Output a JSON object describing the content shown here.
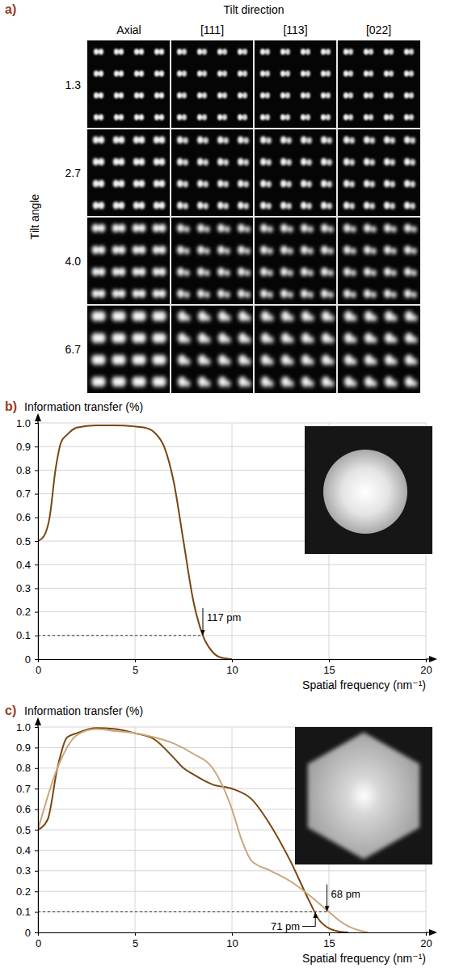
{
  "image_grid": {
    "label": "a)",
    "title": "Tilt direction",
    "row_title": "Tilt angle",
    "columns": [
      "Axial",
      "[111]",
      "[113]",
      "[022]"
    ],
    "rows": [
      "1.3",
      "2.7",
      "4.0",
      "6.7"
    ]
  },
  "chart_data": [
    {
      "label": "b)",
      "type": "line",
      "title": "Information transfer (%)",
      "x_label": "Spatial frequency (nm⁻¹)",
      "xlim": [
        0,
        20
      ],
      "xticks": [
        0,
        5,
        10,
        15,
        20
      ],
      "ylim": [
        0,
        1
      ],
      "yticks": [
        0,
        0.1,
        0.2,
        0.3,
        0.4,
        0.5,
        0.6,
        0.7,
        0.8,
        0.9,
        {
          "value": 1,
          "label": "1.0"
        }
      ],
      "grid": true,
      "threshold": 0.1,
      "annotations": [
        {
          "text": "117 pm",
          "x": 8.5,
          "y": 0.1
        }
      ],
      "series": [
        {
          "color": "#7a4510",
          "x": [
            0,
            0.3,
            0.6,
            0.9,
            1.2,
            1.5,
            2,
            3,
            4,
            5,
            5.5,
            6,
            6.5,
            7,
            7.5,
            8,
            8.5,
            9,
            9.5,
            10
          ],
          "values": [
            0.5,
            0.52,
            0.6,
            0.8,
            0.92,
            0.95,
            0.98,
            0.99,
            0.99,
            0.985,
            0.98,
            0.96,
            0.9,
            0.75,
            0.5,
            0.25,
            0.1,
            0.03,
            0.005,
            0
          ]
        }
      ]
    },
    {
      "label": "c)",
      "type": "line",
      "title": "Information transfer (%)",
      "x_label": "Spatial frequency (nm⁻¹)",
      "xlim": [
        0,
        20
      ],
      "xticks": [
        0,
        5,
        10,
        15,
        20
      ],
      "ylim": [
        0,
        1
      ],
      "yticks": [
        0,
        0.1,
        0.2,
        0.3,
        0.4,
        0.5,
        0.6,
        0.7,
        0.8,
        0.9,
        {
          "value": 1,
          "label": "1.0"
        }
      ],
      "grid": true,
      "threshold": 0.1,
      "annotations": [
        {
          "text": "68 pm",
          "x": 14.9,
          "y": 0.1
        },
        {
          "text": "71 pm",
          "x": 14.3,
          "y": 0.1
        }
      ],
      "series": [
        {
          "color": "#7a4510",
          "x": [
            0,
            0.5,
            1,
            1.5,
            2,
            3,
            4,
            5,
            6,
            7,
            7.5,
            8,
            9,
            10,
            11,
            12,
            13,
            14,
            14.5,
            15,
            15.5,
            16
          ],
          "values": [
            0.5,
            0.55,
            0.8,
            0.95,
            0.97,
            0.995,
            0.99,
            0.97,
            0.94,
            0.85,
            0.8,
            0.77,
            0.72,
            0.7,
            0.65,
            0.52,
            0.35,
            0.15,
            0.06,
            0.02,
            0.005,
            0
          ]
        },
        {
          "color": "#c9a77c",
          "x": [
            0,
            1,
            2,
            3,
            4,
            5,
            6,
            7,
            8,
            9,
            10,
            10.5,
            11,
            12,
            13,
            14,
            15,
            15.5,
            16,
            17
          ],
          "values": [
            0.5,
            0.8,
            0.96,
            0.99,
            0.98,
            0.97,
            0.95,
            0.92,
            0.87,
            0.8,
            0.6,
            0.45,
            0.35,
            0.3,
            0.25,
            0.18,
            0.1,
            0.06,
            0.03,
            0
          ]
        }
      ]
    }
  ]
}
